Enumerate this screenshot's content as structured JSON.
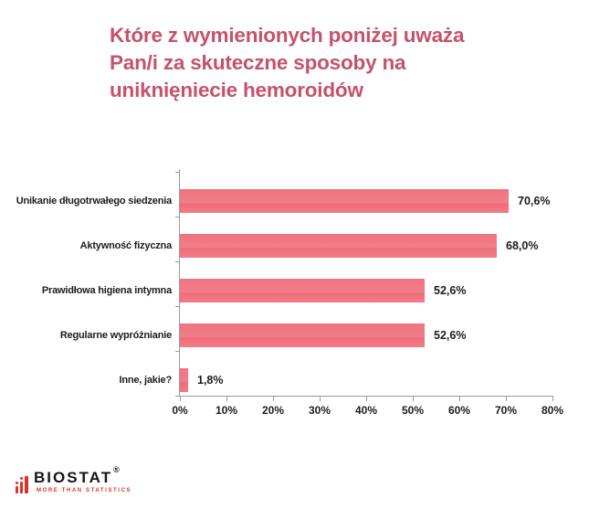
{
  "header": {
    "title_lines": [
      "Które z wymienionych poniżej uważa",
      "Pan/i za skuteczne sposoby na",
      "uniknięniecie hemoroidów"
    ],
    "title_color": "#c5516d"
  },
  "chart_data": {
    "type": "bar",
    "orientation": "horizontal",
    "title": "Które z wymienionych poniżej uważa Pan/i za skuteczne sposoby na uniknięniecie hemoroidów",
    "categories": [
      "Unikanie długotrwałego siedzenia",
      "Aktywność fizyczna",
      "Prawidłowa higiena intymna",
      "Regularne wypróżnianie",
      "Inne, jakie?"
    ],
    "values": [
      70.6,
      68.0,
      52.6,
      52.6,
      1.8
    ],
    "value_labels": [
      "70,6%",
      "68,0%",
      "52,6%",
      "52,6%",
      "1,8%"
    ],
    "x_ticks": [
      "0%",
      "10%",
      "20%",
      "30%",
      "40%",
      "50%",
      "60%",
      "70%",
      "80%"
    ],
    "xlim": [
      0,
      80
    ],
    "xlabel": "",
    "ylabel": "",
    "grid": false,
    "legend": false,
    "bar_color": "#f0737f",
    "axis_color": "#9a9a9a",
    "label_color": "#1c1c1c"
  },
  "logo": {
    "brand": "BIOSTAT",
    "registered": "®",
    "tagline": "MORE THAN STATISTICS",
    "accent_color": "#dd3327",
    "icon": "bar-chart-icon"
  }
}
